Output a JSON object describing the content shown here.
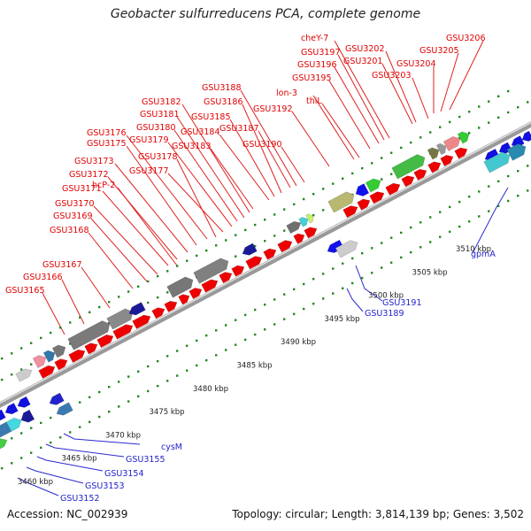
{
  "title": "Geobacter sulfurreducens PCA, complete genome",
  "footer": {
    "accession": "Accession: NC_002939",
    "summary": "Topology: circular; Length: 3,814,139 bp; Genes: 3,502"
  },
  "colors": {
    "top_label": "#e00000",
    "bottom_label": "#2222cc",
    "forward_gene": "#ee0000",
    "reverse_gene": "#1010e0",
    "backbone": "#b0b0b0",
    "dots": "#228822"
  },
  "ruler_labels": [
    "3460 kbp",
    "3465 kbp",
    "3470 kbp",
    "3475 kbp",
    "3480 kbp",
    "3485 kbp",
    "3490 kbp",
    "3495 kbp",
    "3500 kbp",
    "3505 kbp",
    "3510 kbp"
  ],
  "top_labels": [
    "GSU3165",
    "GSU3166",
    "GSU3167",
    "GSU3168",
    "GSU3169",
    "GSU3170",
    "GSU3171",
    "GSU3172",
    "GSU3173",
    "hcP-2",
    "GSU3175",
    "GSU3176",
    "GSU3177",
    "GSU3178",
    "GSU3179",
    "GSU3180",
    "GSU3181",
    "GSU3182",
    "GSU3183",
    "GSU3184",
    "GSU3185",
    "GSU3186",
    "GSU3187",
    "GSU3188",
    "GSU3190",
    "GSU3192",
    "lon-3",
    "thiL",
    "GSU3195",
    "GSU3196",
    "GSU3197",
    "cheY-7",
    "GSU3201",
    "GSU3202",
    "GSU3203",
    "GSU3204",
    "GSU3205",
    "GSU3206"
  ],
  "bottom_labels": [
    "GSU3152",
    "GSU3153",
    "GSU3154",
    "GSU3155",
    "cysM",
    "GSU3189",
    "GSU3191",
    "gpmA"
  ]
}
